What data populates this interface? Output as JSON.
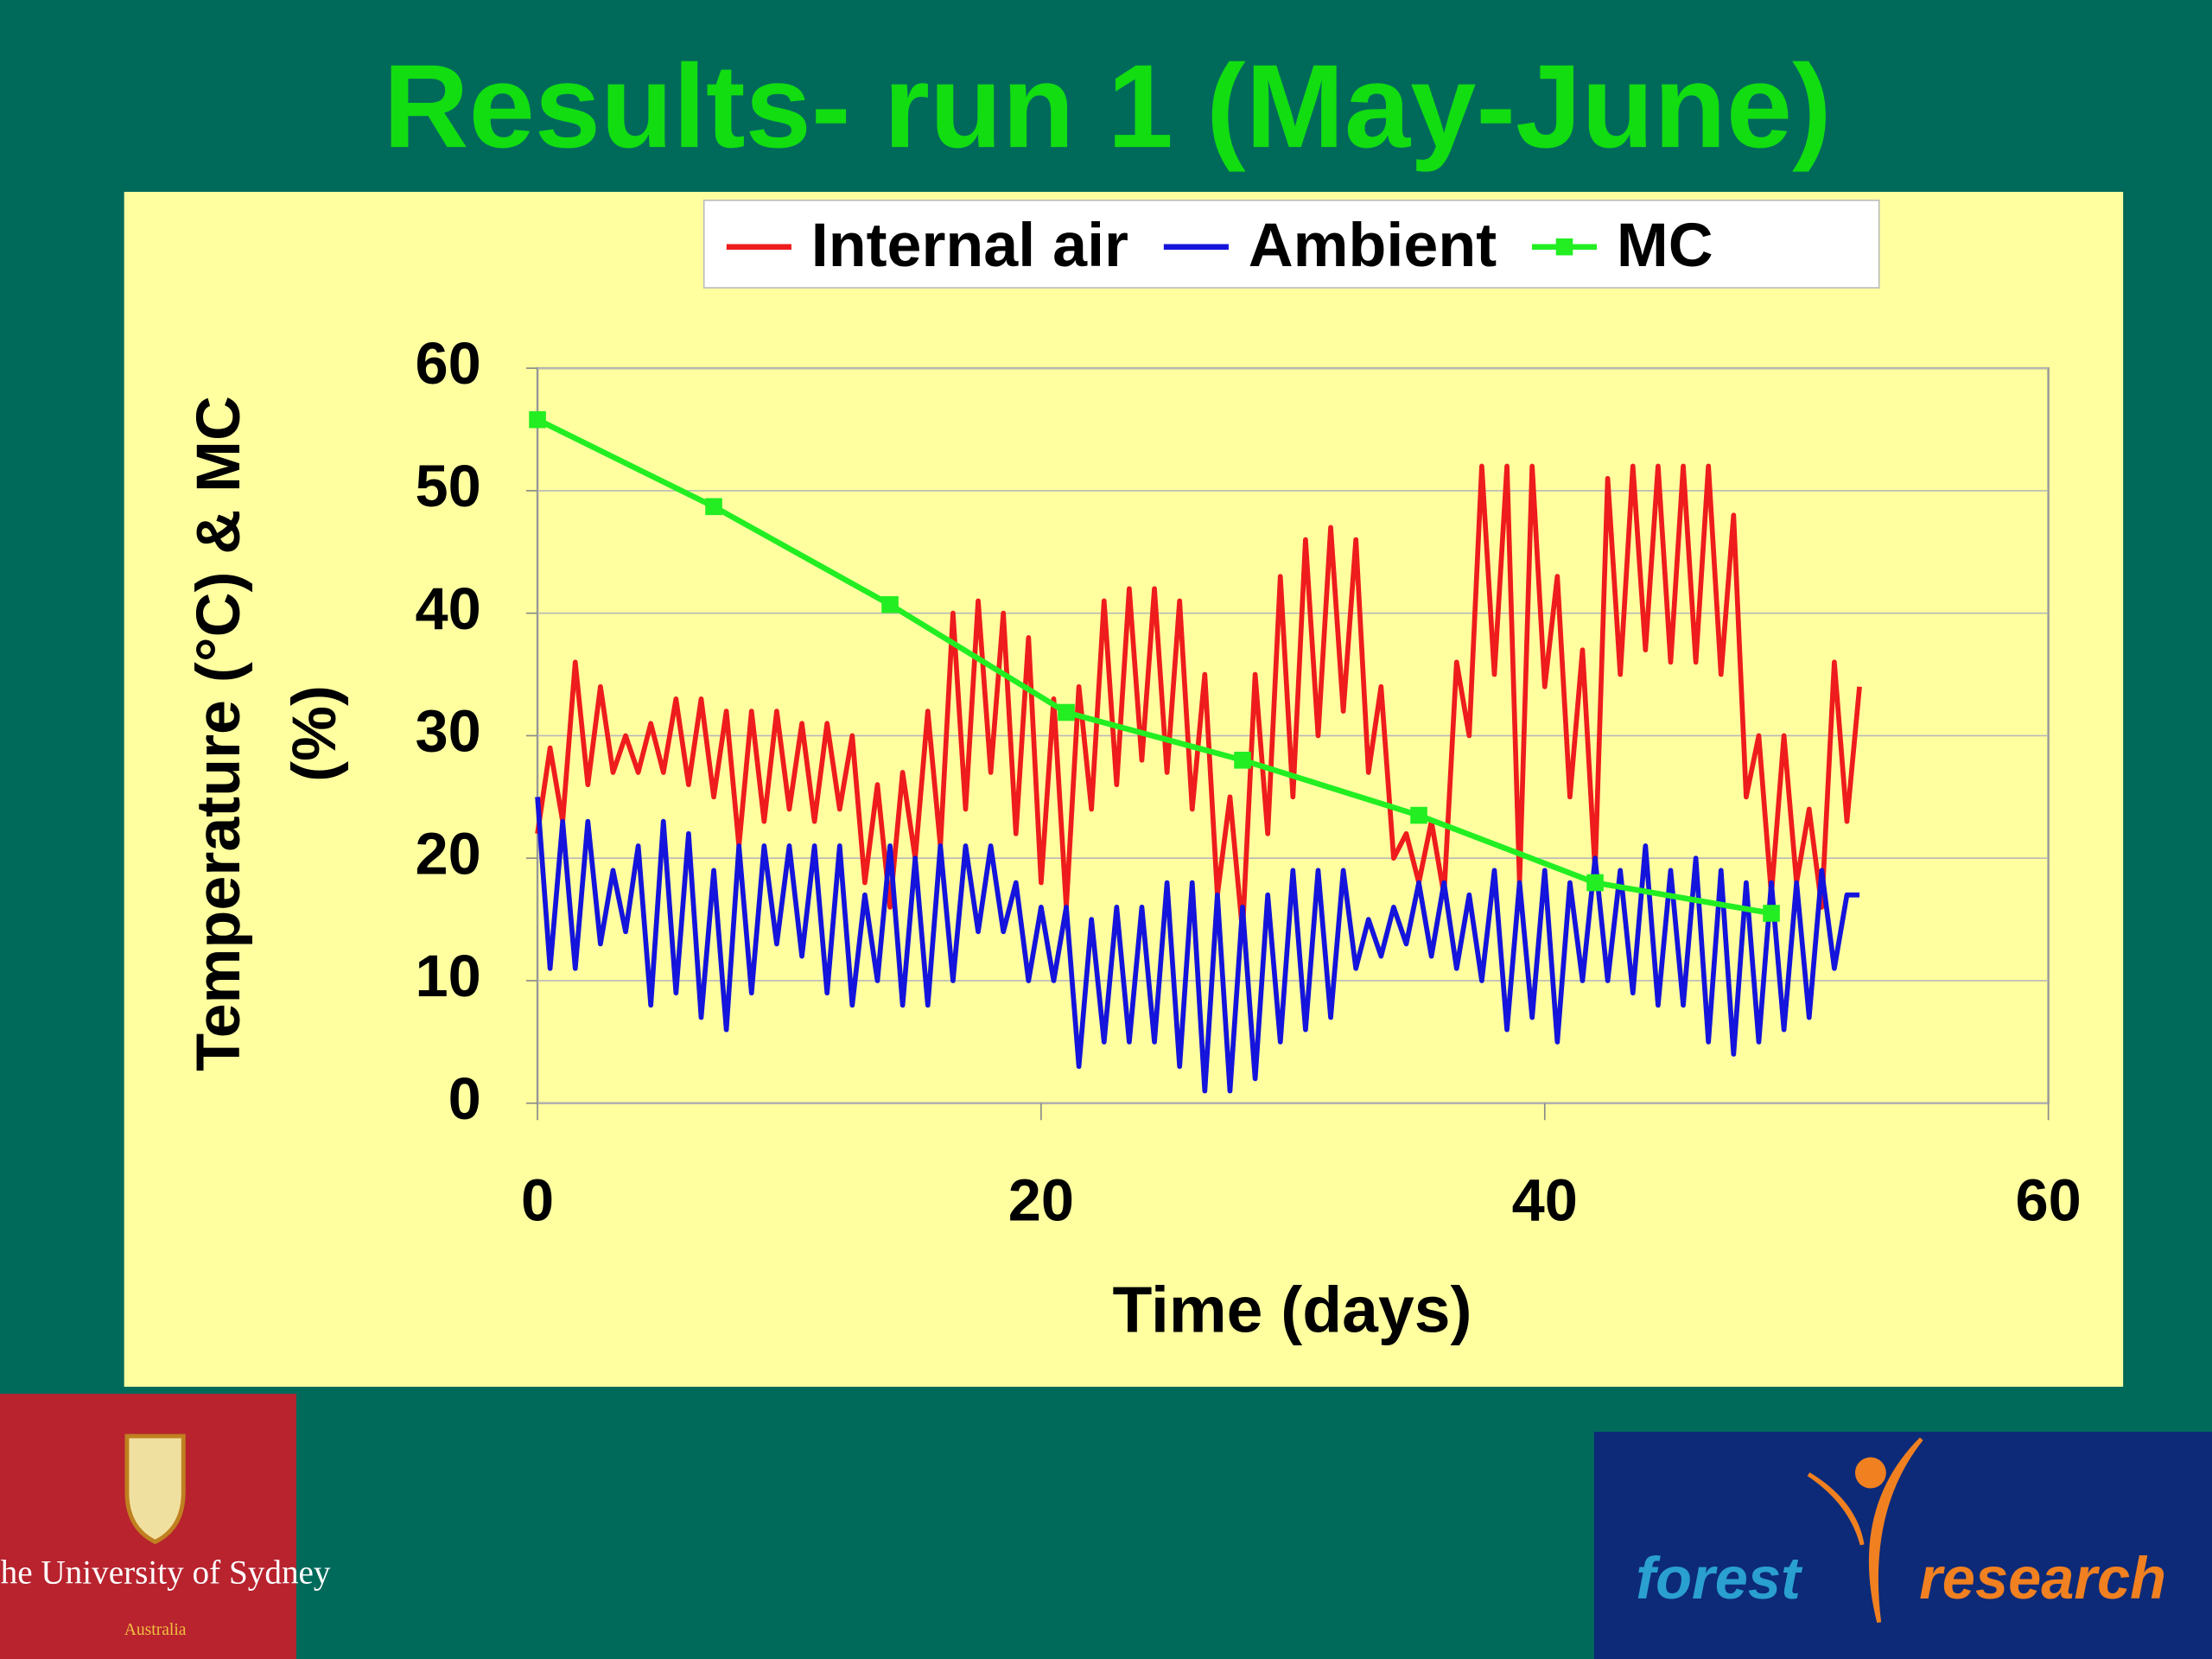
{
  "chart_data": {
    "type": "line",
    "title": "Results- run 1 (May-June)",
    "xlabel": "Time (days)",
    "ylabel_lines": [
      "Temperature (°C) & MC",
      "(%)"
    ],
    "xlim": [
      0,
      60
    ],
    "xticks": [
      0,
      20,
      40,
      60
    ],
    "ylim": [
      0,
      60
    ],
    "yticks": [
      0,
      10,
      20,
      30,
      40,
      50,
      60
    ],
    "grid": true,
    "legend": "top",
    "series": [
      {
        "name": "Internal air",
        "color": "#ee1c1c",
        "marker": false,
        "x": [
          0,
          0.5,
          1,
          1.5,
          2,
          2.5,
          3,
          3.5,
          4,
          4.5,
          5,
          5.5,
          6,
          6.5,
          7,
          7.5,
          8,
          8.5,
          9,
          9.5,
          10,
          10.5,
          11,
          11.5,
          12,
          12.5,
          13,
          13.5,
          14,
          14.5,
          15,
          15.5,
          16,
          16.5,
          17,
          17.5,
          18,
          18.5,
          19,
          19.5,
          20,
          20.5,
          21,
          21.5,
          22,
          22.5,
          23,
          23.5,
          24,
          24.5,
          25,
          25.5,
          26,
          26.5,
          27,
          27.5,
          28,
          28.5,
          29,
          29.5,
          30,
          30.5,
          31,
          31.5,
          32,
          32.5,
          33,
          33.5,
          34,
          34.5,
          35,
          35.5,
          36,
          36.5,
          37,
          37.5,
          38,
          38.5,
          39,
          39.5,
          40,
          40.5,
          41,
          41.5,
          42,
          42.5,
          43,
          43.5,
          44,
          44.5,
          45,
          45.5,
          46,
          46.5,
          47,
          47.5,
          48,
          48.5,
          49,
          49.5,
          50,
          50.5,
          51,
          51.5,
          52,
          52.5
        ],
        "values": [
          22,
          29,
          23,
          36,
          26,
          34,
          27,
          30,
          27,
          31,
          27,
          33,
          26,
          33,
          25,
          32,
          21,
          32,
          23,
          32,
          24,
          31,
          23,
          31,
          24,
          30,
          18,
          26,
          16,
          27,
          20,
          32,
          21,
          40,
          24,
          41,
          27,
          40,
          22,
          38,
          18,
          33,
          16,
          34,
          24,
          41,
          26,
          42,
          28,
          42,
          27,
          41,
          24,
          35,
          17,
          25,
          14,
          35,
          22,
          43,
          25,
          46,
          30,
          47,
          32,
          46,
          27,
          34,
          20,
          22,
          18,
          23,
          17,
          36,
          30,
          52,
          35,
          52,
          18,
          52,
          34,
          43,
          25,
          37,
          19,
          51,
          35,
          52,
          37,
          52,
          36,
          52,
          36,
          52,
          35,
          48,
          25,
          30,
          17,
          30,
          18,
          24,
          16,
          36,
          23,
          34
        ]
      },
      {
        "name": "Ambient",
        "color": "#1414dc",
        "marker": false,
        "x": [
          0,
          0.5,
          1,
          1.5,
          2,
          2.5,
          3,
          3.5,
          4,
          4.5,
          5,
          5.5,
          6,
          6.5,
          7,
          7.5,
          8,
          8.5,
          9,
          9.5,
          10,
          10.5,
          11,
          11.5,
          12,
          12.5,
          13,
          13.5,
          14,
          14.5,
          15,
          15.5,
          16,
          16.5,
          17,
          17.5,
          18,
          18.5,
          19,
          19.5,
          20,
          20.5,
          21,
          21.5,
          22,
          22.5,
          23,
          23.5,
          24,
          24.5,
          25,
          25.5,
          26,
          26.5,
          27,
          27.5,
          28,
          28.5,
          29,
          29.5,
          30,
          30.5,
          31,
          31.5,
          32,
          32.5,
          33,
          33.5,
          34,
          34.5,
          35,
          35.5,
          36,
          36.5,
          37,
          37.5,
          38,
          38.5,
          39,
          39.5,
          40,
          40.5,
          41,
          41.5,
          42,
          42.5,
          43,
          43.5,
          44,
          44.5,
          45,
          45.5,
          46,
          46.5,
          47,
          47.5,
          48,
          48.5,
          49,
          49.5,
          50,
          50.5,
          51,
          51.5,
          52,
          52.5
        ],
        "values": [
          25,
          11,
          23,
          11,
          23,
          13,
          19,
          14,
          21,
          8,
          23,
          9,
          22,
          7,
          19,
          6,
          21,
          9,
          21,
          13,
          21,
          12,
          21,
          9,
          21,
          8,
          17,
          10,
          21,
          8,
          20,
          8,
          21,
          10,
          21,
          14,
          21,
          14,
          18,
          10,
          16,
          10,
          16,
          3,
          15,
          5,
          16,
          5,
          16,
          5,
          18,
          3,
          18,
          1,
          17,
          1,
          16,
          2,
          17,
          5,
          19,
          6,
          19,
          7,
          19,
          11,
          15,
          12,
          16,
          13,
          18,
          12,
          18,
          11,
          17,
          10,
          19,
          6,
          18,
          7,
          19,
          5,
          18,
          10,
          20,
          10,
          19,
          9,
          21,
          8,
          19,
          8,
          20,
          5,
          19,
          4,
          18,
          5,
          18,
          6,
          18,
          7,
          19,
          11,
          17,
          17
        ]
      },
      {
        "name": "MC",
        "color": "#22ee22",
        "marker": true,
        "x": [
          0,
          7,
          14,
          21,
          28,
          35,
          42,
          49
        ],
        "values": [
          55.8,
          48.7,
          40.7,
          31.9,
          28,
          23.5,
          18,
          15.5
        ]
      }
    ],
    "logos": {
      "sydney": [
        "The University of Sydney",
        "Australia"
      ],
      "forest": [
        "forest",
        "research"
      ]
    }
  }
}
